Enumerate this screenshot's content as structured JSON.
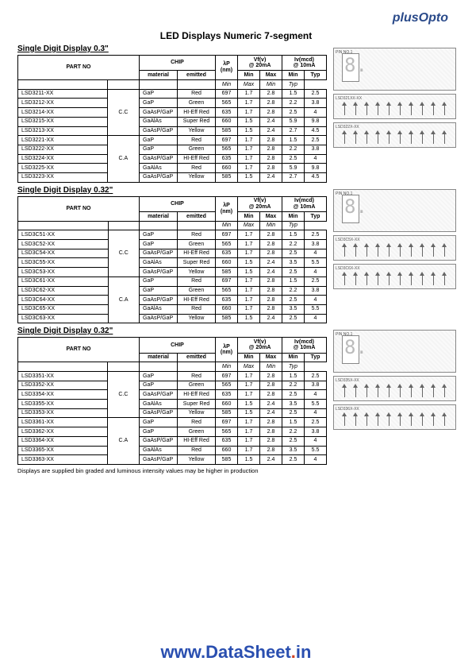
{
  "brand": {
    "plus": "plus",
    "opto": "Opto"
  },
  "title": "LED Displays Numeric 7-segment",
  "footnote": "Displays are supplied bin graded and luminous intensity values may be higher in production",
  "watermark": {
    "www": "www.",
    "name": "DataSheet",
    "dot": ".",
    "tld": "in"
  },
  "header_labels": {
    "part": "PART NO",
    "chip": "CHIP",
    "wavelength": "λP\n(nm)",
    "vf": "Vf(v)\n@ 20mA",
    "iv": "Iv(mcd)\n@ 10mA",
    "material": "material",
    "emitted": "emitted",
    "min": "Min",
    "max": "Max",
    "typ": "Typ"
  },
  "sections": [
    {
      "title": "Single Digit Display 0.3\"",
      "diagram_labels": [
        "LSD321XX-XX",
        "LSD322X-XX"
      ],
      "groups": [
        {
          "type": "C.C",
          "rows": [
            {
              "part": "LSD3211-XX",
              "mat": "GaP",
              "em": "Red",
              "wl": "697",
              "vfmin": "1.7",
              "vfmax": "2.8",
              "ivmin": "1.5",
              "ivtyp": "2.5"
            },
            {
              "part": "LSD3212-XX",
              "mat": "GaP",
              "em": "Green",
              "wl": "565",
              "vfmin": "1.7",
              "vfmax": "2.8",
              "ivmin": "2.2",
              "ivtyp": "3.8"
            },
            {
              "part": "LSD3214-XX",
              "mat": "GaAsP/GaP",
              "em": "HI-Eff Red",
              "wl": "635",
              "vfmin": "1.7",
              "vfmax": "2.8",
              "ivmin": "2.5",
              "ivtyp": "4"
            },
            {
              "part": "LSD3215-XX",
              "mat": "GaAlAs",
              "em": "Super Red",
              "wl": "660",
              "vfmin": "1.5",
              "vfmax": "2.4",
              "ivmin": "5.9",
              "ivtyp": "9.8"
            },
            {
              "part": "LSD3213-XX",
              "mat": "GaAsP/GaP",
              "em": "Yellow",
              "wl": "585",
              "vfmin": "1.5",
              "vfmax": "2.4",
              "ivmin": "2.7",
              "ivtyp": "4.5"
            }
          ]
        },
        {
          "type": "C.A",
          "rows": [
            {
              "part": "LSD3221-XX",
              "mat": "GaP",
              "em": "Red",
              "wl": "697",
              "vfmin": "1.7",
              "vfmax": "2.8",
              "ivmin": "1.5",
              "ivtyp": "2.5"
            },
            {
              "part": "LSD3222-XX",
              "mat": "GaP",
              "em": "Green",
              "wl": "565",
              "vfmin": "1.7",
              "vfmax": "2.8",
              "ivmin": "2.2",
              "ivtyp": "3.8"
            },
            {
              "part": "LSD3224-XX",
              "mat": "GaAsP/GaP",
              "em": "HI-Eff Red",
              "wl": "635",
              "vfmin": "1.7",
              "vfmax": "2.8",
              "ivmin": "2.5",
              "ivtyp": "4"
            },
            {
              "part": "LSD3225-XX",
              "mat": "GaAlAs",
              "em": "Red",
              "wl": "660",
              "vfmin": "1.7",
              "vfmax": "2.8",
              "ivmin": "5.9",
              "ivtyp": "9.8"
            },
            {
              "part": "LSD3223-XX",
              "mat": "GaAsP/GaP",
              "em": "Yellow",
              "wl": "585",
              "vfmin": "1.5",
              "vfmax": "2.4",
              "ivmin": "2.7",
              "ivtyp": "4.5"
            }
          ]
        }
      ]
    },
    {
      "title": "Single Digit Display 0.32\"",
      "diagram_labels": [
        "LSD3C5X-XX",
        "LSD3C6X-XX"
      ],
      "groups": [
        {
          "type": "C.C",
          "rows": [
            {
              "part": "LSD3C51-XX",
              "mat": "GaP",
              "em": "Red",
              "wl": "697",
              "vfmin": "1.7",
              "vfmax": "2.8",
              "ivmin": "1.5",
              "ivtyp": "2.5"
            },
            {
              "part": "LSD3C52-XX",
              "mat": "GaP",
              "em": "Green",
              "wl": "565",
              "vfmin": "1.7",
              "vfmax": "2.8",
              "ivmin": "2.2",
              "ivtyp": "3.8"
            },
            {
              "part": "LSD3C54-XX",
              "mat": "GaAsP/GaP",
              "em": "HI-Eff Red",
              "wl": "635",
              "vfmin": "1.7",
              "vfmax": "2.8",
              "ivmin": "2.5",
              "ivtyp": "4"
            },
            {
              "part": "LSD3C55-XX",
              "mat": "GaAlAs",
              "em": "Super Red",
              "wl": "660",
              "vfmin": "1.5",
              "vfmax": "2.4",
              "ivmin": "3.5",
              "ivtyp": "5.5"
            },
            {
              "part": "LSD3C53-XX",
              "mat": "GaAsP/GaP",
              "em": "Yellow",
              "wl": "585",
              "vfmin": "1.5",
              "vfmax": "2.4",
              "ivmin": "2.5",
              "ivtyp": "4"
            }
          ]
        },
        {
          "type": "C.A",
          "rows": [
            {
              "part": "LSD3C61-XX",
              "mat": "GaP",
              "em": "Red",
              "wl": "697",
              "vfmin": "1.7",
              "vfmax": "2.8",
              "ivmin": "1.5",
              "ivtyp": "2.5"
            },
            {
              "part": "LSD3C62-XX",
              "mat": "GaP",
              "em": "Green",
              "wl": "565",
              "vfmin": "1.7",
              "vfmax": "2.8",
              "ivmin": "2.2",
              "ivtyp": "3.8"
            },
            {
              "part": "LSD3C64-XX",
              "mat": "GaAsP/GaP",
              "em": "HI-Eff Red",
              "wl": "635",
              "vfmin": "1.7",
              "vfmax": "2.8",
              "ivmin": "2.5",
              "ivtyp": "4"
            },
            {
              "part": "LSD3C65-XX",
              "mat": "GaAlAs",
              "em": "Red",
              "wl": "660",
              "vfmin": "1.7",
              "vfmax": "2.8",
              "ivmin": "3.5",
              "ivtyp": "5.5"
            },
            {
              "part": "LSD3C63-XX",
              "mat": "GaAsP/GaP",
              "em": "Yellow",
              "wl": "585",
              "vfmin": "1.5",
              "vfmax": "2.4",
              "ivmin": "2.5",
              "ivtyp": "4"
            }
          ]
        }
      ]
    },
    {
      "title": "Single Digit Display 0.32\"",
      "diagram_labels": [
        "LSD335X-XX",
        "LSD336X-XX"
      ],
      "groups": [
        {
          "type": "C.C",
          "rows": [
            {
              "part": "LSD3351-XX",
              "mat": "GaP",
              "em": "Red",
              "wl": "697",
              "vfmin": "1.7",
              "vfmax": "2.8",
              "ivmin": "1.5",
              "ivtyp": "2.5"
            },
            {
              "part": "LSD3352-XX",
              "mat": "GaP",
              "em": "Green",
              "wl": "565",
              "vfmin": "1.7",
              "vfmax": "2.8",
              "ivmin": "2.2",
              "ivtyp": "3.8"
            },
            {
              "part": "LSD3354-XX",
              "mat": "GaAsP/GaP",
              "em": "HI-Eff Red",
              "wl": "635",
              "vfmin": "1.7",
              "vfmax": "2.8",
              "ivmin": "2.5",
              "ivtyp": "4"
            },
            {
              "part": "LSD3355-XX",
              "mat": "GaAlAs",
              "em": "Super Red",
              "wl": "660",
              "vfmin": "1.5",
              "vfmax": "2.4",
              "ivmin": "3.5",
              "ivtyp": "5.5"
            },
            {
              "part": "LSD3353-XX",
              "mat": "GaAsP/GaP",
              "em": "Yellow",
              "wl": "585",
              "vfmin": "1.5",
              "vfmax": "2.4",
              "ivmin": "2.5",
              "ivtyp": "4"
            }
          ]
        },
        {
          "type": "C.A",
          "rows": [
            {
              "part": "LSD3361-XX",
              "mat": "GaP",
              "em": "Red",
              "wl": "697",
              "vfmin": "1.7",
              "vfmax": "2.8",
              "ivmin": "1.5",
              "ivtyp": "2.5"
            },
            {
              "part": "LSD3362-XX",
              "mat": "GaP",
              "em": "Green",
              "wl": "565",
              "vfmin": "1.7",
              "vfmax": "2.8",
              "ivmin": "2.2",
              "ivtyp": "3.8"
            },
            {
              "part": "LSD3364-XX",
              "mat": "GaAsP/GaP",
              "em": "HI-Eff Red",
              "wl": "635",
              "vfmin": "1.7",
              "vfmax": "2.8",
              "ivmin": "2.5",
              "ivtyp": "4"
            },
            {
              "part": "LSD3365-XX",
              "mat": "GaAlAs",
              "em": "Red",
              "wl": "660",
              "vfmin": "1.7",
              "vfmax": "2.8",
              "ivmin": "3.5",
              "ivtyp": "5.5"
            },
            {
              "part": "LSD3363-XX",
              "mat": "GaAsP/GaP",
              "em": "Yellow",
              "wl": "585",
              "vfmin": "1.5",
              "vfmax": "2.4",
              "ivmin": "2.5",
              "ivtyp": "4"
            }
          ]
        }
      ]
    }
  ]
}
